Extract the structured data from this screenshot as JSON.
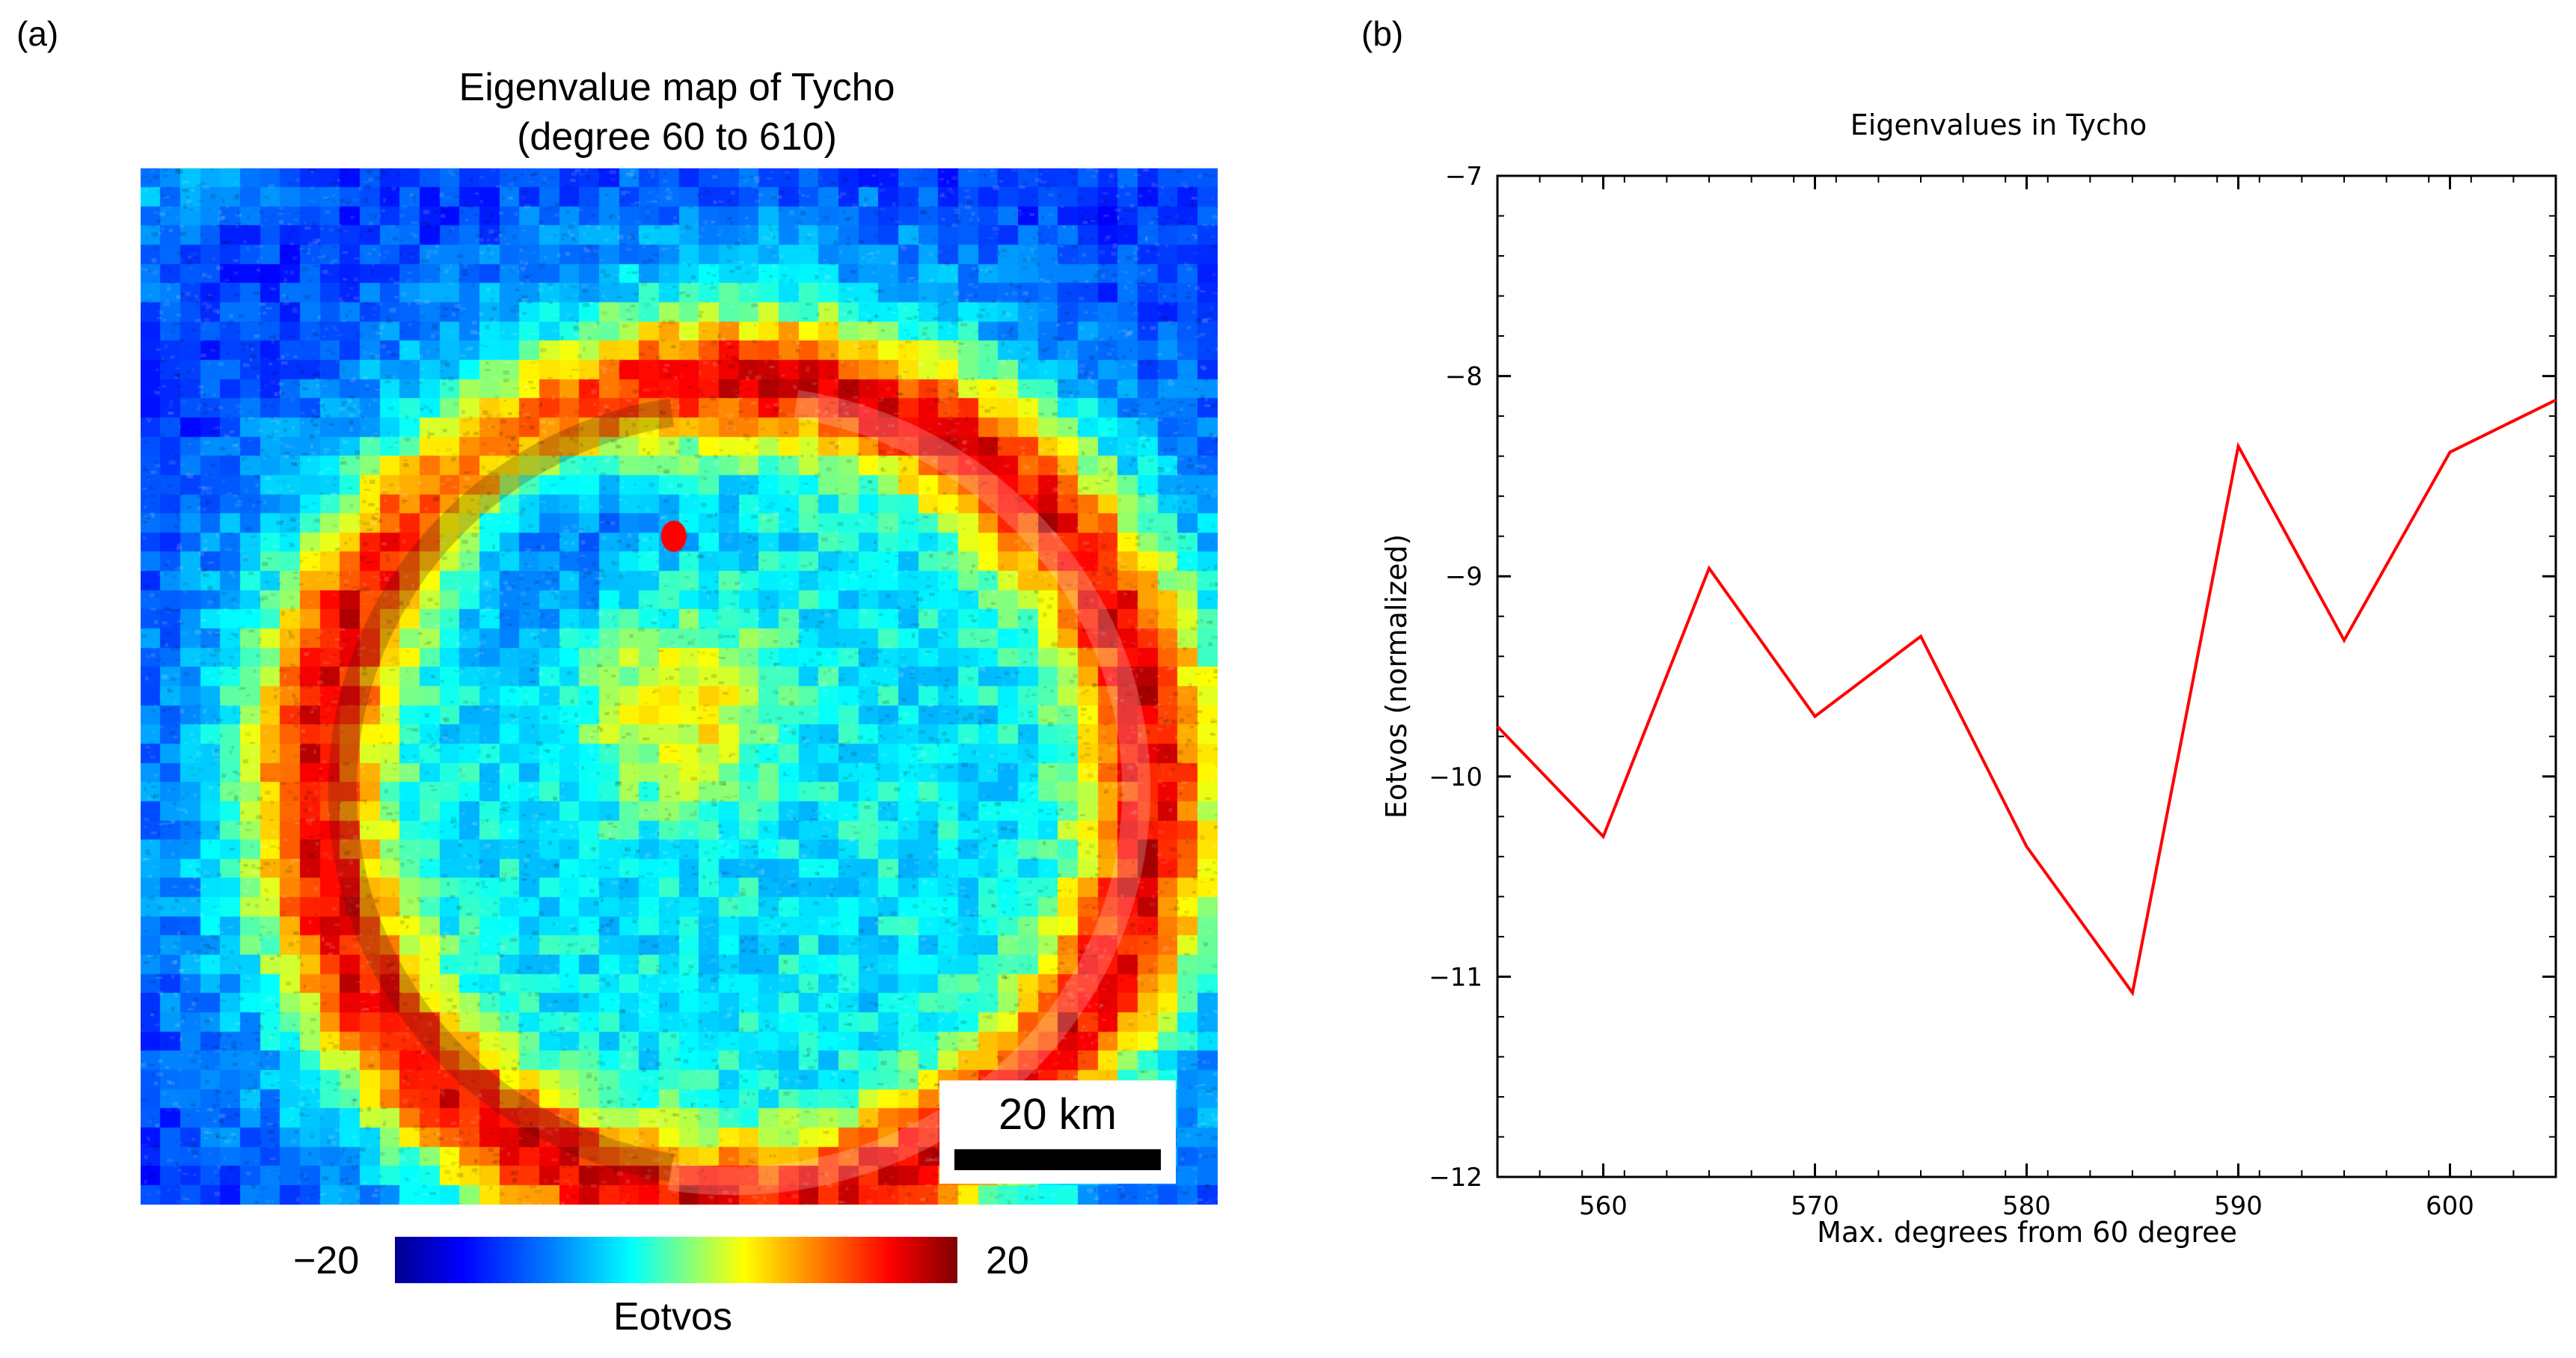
{
  "panels": {
    "a": "(a)",
    "b": "(b)"
  },
  "map": {
    "title_line1": "Eigenvalue map of Tycho",
    "title_line2": "(degree 60 to 610)",
    "scalebar_label": "20 km",
    "colorbar": {
      "min_label": "−20",
      "max_label": "20",
      "label": "Eotvos",
      "min": -20,
      "max": 20
    },
    "colors": {
      "low": "#00008f",
      "mid": "#00ffff",
      "high": "#800000",
      "marker": "#ff0000"
    }
  },
  "chart_data": {
    "type": "line",
    "title": "Eigenvalues in Tycho",
    "xlabel": "Max. degrees from 60 degree",
    "ylabel": "Eotvos (normalized)",
    "xlim": [
      555,
      605
    ],
    "ylim": [
      -12,
      -7
    ],
    "xticks": [
      560,
      570,
      580,
      590,
      600
    ],
    "yticks": [
      -12,
      -11,
      -10,
      -9,
      -8,
      -7
    ],
    "xtick_labels": [
      "560",
      "570",
      "580",
      "590",
      "600"
    ],
    "ytick_labels": [
      "−12",
      "−11",
      "−10",
      "−9",
      "−8",
      "−7"
    ],
    "series": [
      {
        "name": "Eigenvalues",
        "color": "#ff0000",
        "x": [
          555,
          560,
          565,
          570,
          575,
          580,
          585,
          590,
          595,
          600,
          605
        ],
        "y": [
          -9.75,
          -10.3,
          -8.96,
          -9.7,
          -9.3,
          -10.35,
          -11.08,
          -8.35,
          -9.32,
          -8.38,
          -8.12
        ]
      }
    ]
  }
}
